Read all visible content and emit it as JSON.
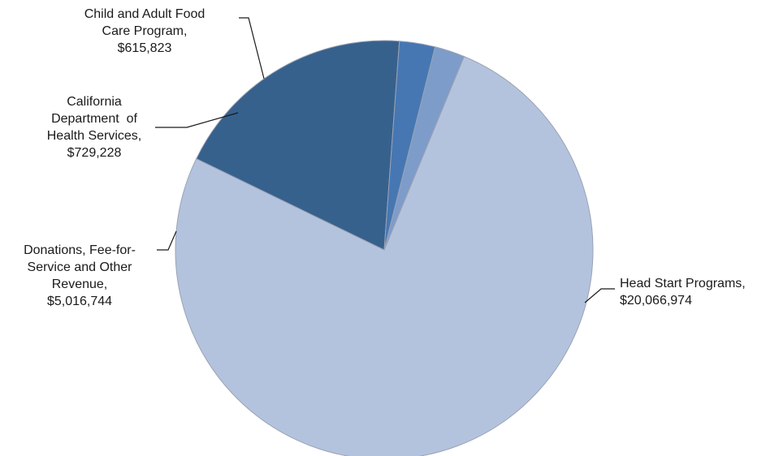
{
  "chart_data": {
    "type": "pie",
    "title": "",
    "slices": [
      {
        "label": [
          "Head Start Programs,",
          "$20,066,974"
        ],
        "name": "Head Start Programs",
        "value": 20066974,
        "color": "#b4c3dd"
      },
      {
        "label": [
          "Donations, Fee-for-",
          "Service and Other",
          "Revenue,",
          "$5,016,744"
        ],
        "name": "Donations, Fee-for-Service and Other Revenue",
        "value": 5016744,
        "color": "#37618d"
      },
      {
        "label": [
          "California",
          "Department  of",
          "Health Services,",
          "$729,228"
        ],
        "name": "California Department of Health Services",
        "value": 729228,
        "color": "#4677b2"
      },
      {
        "label": [
          "Child and Adult Food",
          "Care Program,",
          "$615,823"
        ],
        "name": "Child and Adult Food Care Program",
        "value": 615823,
        "color": "#7e9cc9"
      }
    ],
    "legend": "none",
    "data_labels": "outside with leader lines"
  }
}
